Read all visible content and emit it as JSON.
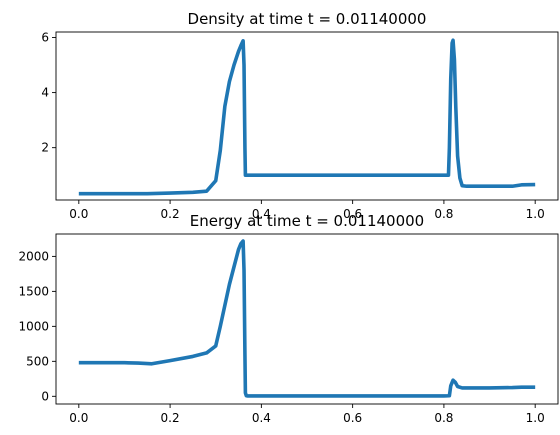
{
  "chart_data": [
    {
      "type": "line",
      "title": "Density at time t =     0.01140000",
      "xlabel": "",
      "ylabel": "",
      "xlim": [
        -0.05,
        1.05
      ],
      "ylim": [
        0.1,
        6.2
      ],
      "xticks": [
        0.0,
        0.2,
        0.4,
        0.6,
        0.8,
        1.0
      ],
      "xtick_labels": [
        "0.0",
        "0.2",
        "0.4",
        "0.6",
        "0.8",
        "1.0"
      ],
      "yticks": [
        2,
        4,
        6
      ],
      "ytick_labels": [
        "2",
        "4",
        "6"
      ],
      "grid": false,
      "legend": "none",
      "color": "#1f77b4",
      "series": [
        {
          "x": [
            0.0,
            0.05,
            0.1,
            0.15,
            0.2,
            0.25,
            0.28,
            0.3,
            0.31,
            0.32,
            0.33,
            0.34,
            0.35,
            0.355,
            0.36,
            0.362,
            0.364,
            0.365,
            0.367,
            0.37,
            0.4,
            0.5,
            0.6,
            0.7,
            0.8,
            0.81,
            0.812,
            0.815,
            0.818,
            0.82,
            0.823,
            0.826,
            0.83,
            0.835,
            0.84,
            0.85,
            0.9,
            0.95,
            0.97,
            1.0
          ],
          "y": [
            0.33,
            0.33,
            0.33,
            0.33,
            0.35,
            0.38,
            0.42,
            0.8,
            1.9,
            3.5,
            4.4,
            5.0,
            5.5,
            5.7,
            5.88,
            5.0,
            2.0,
            1.0,
            1.0,
            1.0,
            1.0,
            1.0,
            1.0,
            1.0,
            1.0,
            1.0,
            2.0,
            4.5,
            5.8,
            5.9,
            5.2,
            3.5,
            1.7,
            0.9,
            0.62,
            0.6,
            0.6,
            0.6,
            0.65,
            0.66
          ]
        }
      ]
    },
    {
      "type": "line",
      "title": "Energy at time t =     0.01140000",
      "xlabel": "",
      "ylabel": "",
      "xlim": [
        -0.05,
        1.05
      ],
      "ylim": [
        -110,
        2320
      ],
      "xticks": [
        0.0,
        0.2,
        0.4,
        0.6,
        0.8,
        1.0
      ],
      "xtick_labels": [
        "0.0",
        "0.2",
        "0.4",
        "0.6",
        "0.8",
        "1.0"
      ],
      "yticks": [
        0,
        500,
        1000,
        1500,
        2000
      ],
      "ytick_labels": [
        "0",
        "500",
        "1000",
        "1500",
        "2000"
      ],
      "grid": false,
      "legend": "none",
      "color": "#1f77b4",
      "series": [
        {
          "x": [
            0.0,
            0.05,
            0.1,
            0.13,
            0.16,
            0.2,
            0.25,
            0.28,
            0.3,
            0.31,
            0.32,
            0.33,
            0.34,
            0.35,
            0.355,
            0.36,
            0.362,
            0.364,
            0.365,
            0.367,
            0.37,
            0.4,
            0.5,
            0.6,
            0.7,
            0.8,
            0.812,
            0.815,
            0.82,
            0.825,
            0.83,
            0.84,
            0.85,
            0.9,
            0.95,
            0.97,
            1.0
          ],
          "y": [
            480,
            480,
            480,
            475,
            465,
            510,
            570,
            620,
            720,
            1000,
            1300,
            1600,
            1850,
            2100,
            2180,
            2220,
            1800,
            600,
            50,
            8,
            5,
            5,
            5,
            5,
            5,
            5,
            8,
            150,
            230,
            200,
            140,
            120,
            120,
            120,
            125,
            130,
            130
          ]
        }
      ]
    }
  ]
}
